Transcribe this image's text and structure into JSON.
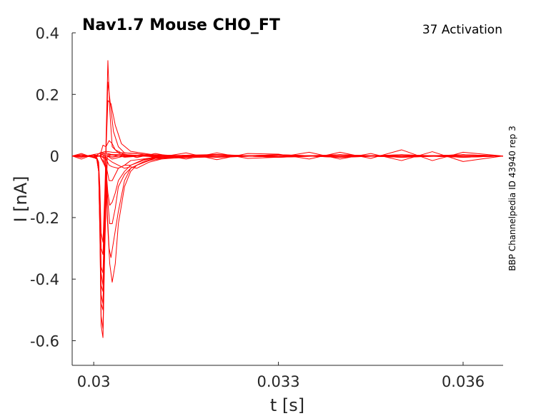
{
  "chart_data": {
    "type": "line",
    "title": "Nav1.7  Mouse  CHO_FT",
    "annotation": "37  Activation",
    "side_label": "BBP Channelpedia ID 43940 rep 3",
    "xlabel": "t [s]",
    "ylabel": "I [nA]",
    "xlim": [
      0.02965,
      0.03665
    ],
    "ylim": [
      -0.68,
      0.4
    ],
    "xticks": [
      0.03,
      0.033,
      0.036
    ],
    "xtick_labels": [
      "0.03",
      "0.033",
      "0.036"
    ],
    "yticks": [
      0.4,
      0.2,
      0,
      -0.2,
      -0.4,
      -0.6
    ],
    "ytick_labels": [
      "0.4",
      "0.2",
      "0",
      "-0.2",
      "-0.4",
      "-0.6"
    ],
    "grid": false,
    "line_color": "#ff0000",
    "series": [
      {
        "x": [
          0.02965,
          0.0298,
          0.03,
          0.03005,
          0.03008,
          0.0301,
          0.03012,
          0.03015,
          0.03018,
          0.03022,
          0.0303,
          0.0305,
          0.031,
          0.032,
          0.033,
          0.034,
          0.035,
          0.036,
          0.03665
        ],
        "y": [
          0,
          0.003,
          -0.005,
          -0.01,
          -0.05,
          -0.25,
          -0.55,
          -0.59,
          -0.3,
          0.0,
          -0.01,
          0.0,
          0.0,
          0.005,
          -0.003,
          0.004,
          -0.002,
          0.003,
          0
        ]
      },
      {
        "x": [
          0.02965,
          0.0298,
          0.03,
          0.03005,
          0.03008,
          0.0301,
          0.03012,
          0.03015,
          0.03018,
          0.03022,
          0.0303,
          0.0305,
          0.031,
          0.032,
          0.033,
          0.034,
          0.035,
          0.036,
          0.03665
        ],
        "y": [
          0,
          -0.003,
          0.002,
          -0.01,
          -0.05,
          -0.25,
          -0.52,
          -0.56,
          -0.28,
          0.0,
          0.005,
          -0.004,
          0.003,
          -0.002,
          0.004,
          -0.003,
          0.002,
          -0.004,
          0
        ]
      },
      {
        "x": [
          0.02965,
          0.0298,
          0.03,
          0.03005,
          0.03008,
          0.0301,
          0.03012,
          0.03015,
          0.03018,
          0.03022,
          0.0303,
          0.0305,
          0.031,
          0.032,
          0.033,
          0.034,
          0.035,
          0.036,
          0.03665
        ],
        "y": [
          0,
          0.004,
          -0.003,
          -0.01,
          -0.05,
          -0.22,
          -0.48,
          -0.5,
          -0.25,
          0.0,
          -0.004,
          0.003,
          -0.003,
          0.004,
          -0.002,
          0.003,
          -0.004,
          0.002,
          0
        ]
      },
      {
        "x": [
          0.02965,
          0.0298,
          0.03,
          0.03005,
          0.03008,
          0.0301,
          0.03012,
          0.03015,
          0.03018,
          0.03022,
          0.0303,
          0.0305,
          0.031,
          0.032,
          0.033,
          0.034,
          0.035,
          0.036,
          0.03665
        ],
        "y": [
          0,
          -0.004,
          0.003,
          -0.008,
          -0.04,
          -0.18,
          -0.42,
          -0.44,
          -0.2,
          0.005,
          0.003,
          -0.002,
          0.004,
          -0.003,
          0.003,
          -0.004,
          0.003,
          -0.002,
          0
        ]
      },
      {
        "x": [
          0.02965,
          0.0298,
          0.03,
          0.03005,
          0.03008,
          0.0301,
          0.03012,
          0.03015,
          0.03018,
          0.03022,
          0.0303,
          0.0305,
          0.031,
          0.032,
          0.033,
          0.034,
          0.035,
          0.036,
          0.03665
        ],
        "y": [
          0,
          0.002,
          -0.004,
          -0.008,
          -0.04,
          -0.15,
          -0.36,
          -0.38,
          -0.18,
          0.0,
          -0.003,
          0.004,
          -0.002,
          0.003,
          -0.004,
          0.002,
          -0.003,
          0.004,
          0
        ]
      },
      {
        "x": [
          0.02965,
          0.0298,
          0.03,
          0.03005,
          0.03008,
          0.0301,
          0.03012,
          0.03015,
          0.03018,
          0.03022,
          0.0303,
          0.0305,
          0.031,
          0.032,
          0.033,
          0.034,
          0.035,
          0.036,
          0.03665
        ],
        "y": [
          0,
          -0.002,
          0.004,
          -0.006,
          -0.03,
          -0.12,
          -0.3,
          -0.32,
          -0.15,
          0.0,
          0.004,
          -0.003,
          0.003,
          -0.004,
          0.002,
          -0.003,
          0.004,
          -0.003,
          0
        ]
      },
      {
        "x": [
          0.02965,
          0.0298,
          0.03,
          0.03005,
          0.03008,
          0.0301,
          0.03012,
          0.03015,
          0.03018,
          0.0302,
          0.03023,
          0.03026,
          0.0303,
          0.0304,
          0.0305,
          0.031,
          0.032,
          0.033,
          0.034,
          0.035,
          0.036,
          0.03665
        ],
        "y": [
          0,
          0.003,
          -0.003,
          -0.008,
          -0.04,
          -0.2,
          -0.45,
          -0.48,
          -0.2,
          0.05,
          0.31,
          0.15,
          0.03,
          0.01,
          0.0,
          0.002,
          -0.003,
          0.004,
          -0.002,
          0.003,
          -0.004,
          0
        ]
      },
      {
        "x": [
          0.02965,
          0.0298,
          0.03,
          0.03005,
          0.03008,
          0.0301,
          0.03012,
          0.03015,
          0.03018,
          0.0302,
          0.03023,
          0.03027,
          0.03032,
          0.0304,
          0.0305,
          0.031,
          0.032,
          0.033,
          0.034,
          0.035,
          0.036,
          0.03665
        ],
        "y": [
          0,
          -0.003,
          0.003,
          -0.006,
          -0.03,
          -0.15,
          -0.38,
          -0.42,
          -0.18,
          0.03,
          0.24,
          0.17,
          0.08,
          0.03,
          0.01,
          0.003,
          -0.002,
          0.003,
          -0.004,
          0.002,
          -0.003,
          0
        ]
      },
      {
        "x": [
          0.02965,
          0.0298,
          0.03,
          0.03005,
          0.03008,
          0.0301,
          0.03012,
          0.03015,
          0.03018,
          0.0302,
          0.03023,
          0.03028,
          0.03035,
          0.03045,
          0.0306,
          0.031,
          0.032,
          0.033,
          0.034,
          0.035,
          0.036,
          0.03665
        ],
        "y": [
          0,
          0.002,
          -0.004,
          -0.005,
          -0.02,
          -0.1,
          -0.25,
          -0.28,
          -0.12,
          0.02,
          0.18,
          0.17,
          0.1,
          0.04,
          0.015,
          0.003,
          -0.004,
          0.002,
          -0.003,
          0.004,
          -0.002,
          0
        ]
      },
      {
        "x": [
          0.02965,
          0.0298,
          0.03,
          0.0301,
          0.03015,
          0.0302,
          0.03025,
          0.0303,
          0.03035,
          0.0304,
          0.0305,
          0.0307,
          0.031,
          0.032,
          0.033,
          0.034,
          0.035,
          0.036,
          0.03665
        ],
        "y": [
          0,
          -0.003,
          0.004,
          0.0,
          0.035,
          0.03,
          0.05,
          0.04,
          0.02,
          0.015,
          0.005,
          0.002,
          0.004,
          -0.003,
          0.004,
          -0.002,
          0.003,
          -0.004,
          0
        ]
      },
      {
        "x": [
          0.02965,
          0.0298,
          0.03,
          0.0301,
          0.03015,
          0.03018,
          0.0302,
          0.03022,
          0.03026,
          0.0303,
          0.03035,
          0.0304,
          0.0305,
          0.0306,
          0.0307,
          0.0309,
          0.0312,
          0.032,
          0.033,
          0.034,
          0.035,
          0.036,
          0.03665
        ],
        "y": [
          0,
          0.004,
          -0.003,
          0.0,
          0.01,
          0.005,
          -0.05,
          -0.2,
          -0.35,
          -0.41,
          -0.35,
          -0.22,
          -0.1,
          -0.05,
          -0.03,
          -0.015,
          -0.005,
          0.003,
          -0.004,
          0.003,
          -0.002,
          0.004,
          0
        ]
      },
      {
        "x": [
          0.02965,
          0.0298,
          0.03,
          0.0301,
          0.03015,
          0.03018,
          0.0302,
          0.03022,
          0.03025,
          0.03028,
          0.03032,
          0.0304,
          0.0305,
          0.0306,
          0.0308,
          0.031,
          0.032,
          0.033,
          0.034,
          0.035,
          0.036,
          0.03665
        ],
        "y": [
          0,
          -0.002,
          0.003,
          0.0,
          0.005,
          0.0,
          -0.05,
          -0.18,
          -0.3,
          -0.33,
          -0.28,
          -0.18,
          -0.08,
          -0.04,
          -0.02,
          -0.006,
          0.004,
          -0.002,
          0.004,
          -0.003,
          0.002,
          0
        ]
      },
      {
        "x": [
          0.02965,
          0.0298,
          0.03,
          0.0301,
          0.03015,
          0.0302,
          0.03023,
          0.03026,
          0.0303,
          0.03035,
          0.0304,
          0.0305,
          0.0306,
          0.0308,
          0.031,
          0.032,
          0.033,
          0.034,
          0.035,
          0.036,
          0.03665
        ],
        "y": [
          0,
          0.003,
          -0.004,
          0.0,
          0.005,
          -0.05,
          -0.15,
          -0.22,
          -0.22,
          -0.17,
          -0.1,
          -0.06,
          -0.04,
          -0.02,
          -0.008,
          -0.003,
          0.003,
          -0.004,
          0.002,
          -0.003,
          0
        ]
      },
      {
        "x": [
          0.02965,
          0.0298,
          0.03,
          0.0301,
          0.0302,
          0.03023,
          0.03026,
          0.0303,
          0.03035,
          0.0304,
          0.0305,
          0.0306,
          0.0308,
          0.031,
          0.032,
          0.033,
          0.034,
          0.035,
          0.036,
          0.03665
        ],
        "y": [
          0,
          -0.004,
          0.002,
          0.0,
          -0.04,
          -0.12,
          -0.16,
          -0.15,
          -0.12,
          -0.08,
          -0.05,
          -0.03,
          -0.015,
          -0.005,
          0.004,
          -0.003,
          0.003,
          -0.004,
          0.003,
          0
        ]
      },
      {
        "x": [
          0.02965,
          0.0298,
          0.03,
          0.0301,
          0.0302,
          0.03025,
          0.0303,
          0.03035,
          0.0304,
          0.0305,
          0.0306,
          0.0308,
          0.031,
          0.032,
          0.033,
          0.034,
          0.035,
          0.036,
          0.03665
        ],
        "y": [
          0,
          0.003,
          -0.002,
          0.0,
          -0.03,
          -0.08,
          -0.08,
          -0.06,
          -0.04,
          -0.03,
          -0.015,
          -0.01,
          -0.004,
          0.003,
          -0.004,
          0.002,
          -0.003,
          0.004,
          0
        ]
      },
      {
        "x": [
          0.02965,
          0.0298,
          0.03,
          0.0301,
          0.0302,
          0.03025,
          0.0303,
          0.0304,
          0.0305,
          0.0306,
          0.0308,
          0.031,
          0.032,
          0.033,
          0.034,
          0.035,
          0.036,
          0.03665
        ],
        "y": [
          0,
          -0.002,
          0.004,
          0.0,
          -0.01,
          -0.03,
          -0.035,
          -0.04,
          -0.03,
          -0.03,
          -0.012,
          -0.006,
          0.002,
          -0.003,
          0.004,
          -0.002,
          0.003,
          0
        ]
      },
      {
        "x": [
          0.02965,
          0.0298,
          0.03,
          0.0301,
          0.0302,
          0.0303,
          0.0304,
          0.0305,
          0.0306,
          0.0307,
          0.0309,
          0.0311,
          0.032,
          0.033,
          0.034,
          0.035,
          0.036,
          0.03665
        ],
        "y": [
          0,
          0.002,
          -0.003,
          0.0,
          -0.005,
          -0.02,
          -0.03,
          -0.04,
          -0.035,
          -0.04,
          -0.02,
          -0.01,
          0.004,
          -0.002,
          0.003,
          -0.004,
          0.002,
          0
        ]
      },
      {
        "x": [
          0.02965,
          0.0298,
          0.03,
          0.0301,
          0.0302,
          0.0303,
          0.0305,
          0.0307,
          0.031,
          0.0315,
          0.032,
          0.0325,
          0.033,
          0.0335,
          0.034,
          0.0345,
          0.035,
          0.0355,
          0.036,
          0.03665
        ],
        "y": [
          0,
          0.008,
          -0.006,
          0.01,
          0.015,
          0.012,
          0.01,
          0.008,
          -0.006,
          0.01,
          -0.012,
          0.008,
          0.006,
          -0.01,
          0.012,
          -0.008,
          0.02,
          -0.015,
          0.012,
          0
        ]
      },
      {
        "x": [
          0.02965,
          0.0298,
          0.03,
          0.0301,
          0.0302,
          0.0303,
          0.0305,
          0.0307,
          0.031,
          0.0315,
          0.032,
          0.0325,
          0.033,
          0.0335,
          0.034,
          0.0345,
          0.035,
          0.0355,
          0.036,
          0.03665
        ],
        "y": [
          0,
          -0.01,
          0.005,
          0.008,
          0.01,
          0.004,
          0.006,
          -0.005,
          0.008,
          -0.01,
          0.01,
          -0.008,
          -0.004,
          0.012,
          -0.01,
          0.008,
          -0.015,
          0.014,
          -0.018,
          0
        ]
      }
    ]
  }
}
